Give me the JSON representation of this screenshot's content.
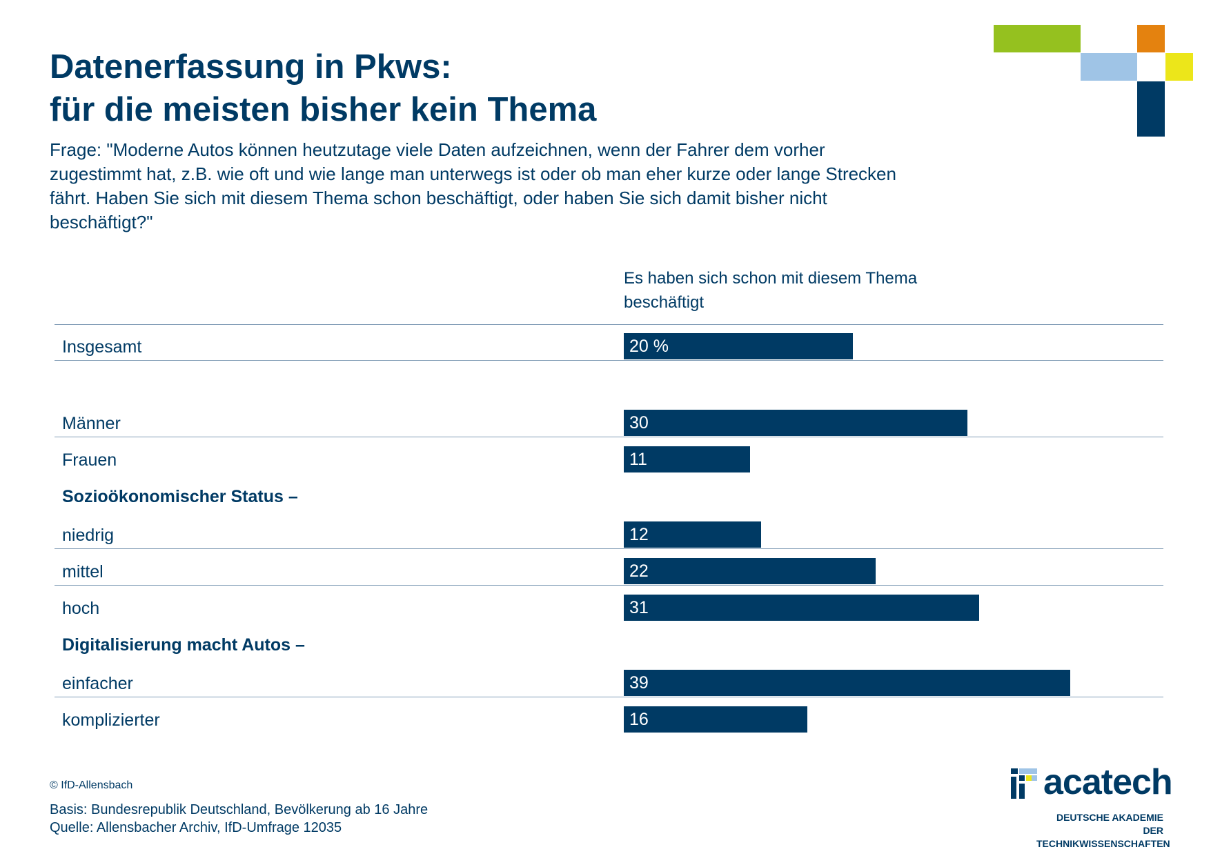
{
  "title": {
    "line1": "Datenerfassung in Pkws:",
    "line2": "für die meisten bisher kein Thema"
  },
  "question": "Frage: \"Moderne Autos können heutzutage viele Daten aufzeichnen, wenn der Fahrer dem vorher zugestimmt hat, z.B. wie oft und wie lange man unterwegs ist oder ob man eher kurze oder lange Strecken fährt. Haben Sie sich mit diesem Thema schon beschäftigt, oder haben Sie sich damit bisher nicht beschäftigt?\"",
  "column_header": "Es haben sich schon mit diesem Thema beschäftigt",
  "colors": {
    "primary": "#003a64",
    "rule": "#7f9bb5",
    "green": "#95c11f",
    "orange": "#e4820f",
    "light_blue": "#9fc4e6",
    "yellow": "#ece61a"
  },
  "chart_data": {
    "type": "bar",
    "orientation": "horizontal",
    "title": "Datenerfassung in Pkws: für die meisten bisher kein Thema",
    "value_header": "Es haben sich schon mit diesem Thema beschäftigt",
    "unit": "%",
    "groups": [
      {
        "group": "",
        "categories": [
          "Insgesamt"
        ],
        "values": [
          20
        ],
        "value_labels": [
          "20 %"
        ]
      },
      {
        "group": "",
        "categories": [
          "Männer",
          "Frauen"
        ],
        "values": [
          30,
          11
        ],
        "value_labels": [
          "30",
          "11"
        ]
      },
      {
        "group": "Sozioökonomischer Status –",
        "categories": [
          "niedrig",
          "mittel",
          "hoch"
        ],
        "values": [
          12,
          22,
          31
        ],
        "value_labels": [
          "12",
          "22",
          "31"
        ]
      },
      {
        "group": "Digitalisierung macht Autos –",
        "categories": [
          "einfacher",
          "komplizierter"
        ],
        "values": [
          39,
          16
        ],
        "value_labels": [
          "39",
          "16"
        ]
      }
    ]
  },
  "footer": {
    "copyright": "© IfD-Allensbach",
    "basis": "Basis: Bundesrepublik Deutschland, Bevölkerung ab 16 Jahre",
    "source": "Quelle: Allensbacher Archiv, IfD-Umfrage 12035"
  },
  "logo": {
    "name": "acatech",
    "sub1": "DEUTSCHE AKADEMIE DER",
    "sub2": "TECHNIKWISSENSCHAFTEN"
  }
}
